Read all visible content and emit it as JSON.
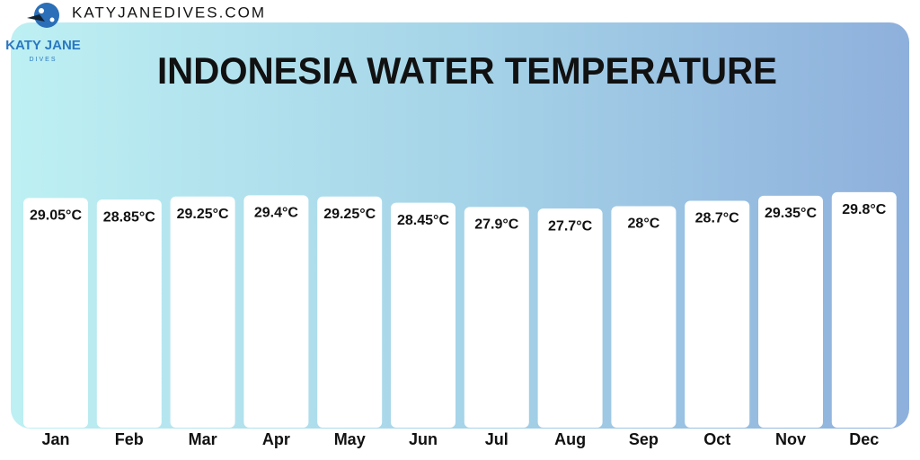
{
  "branding": {
    "site": "KATYJANEDIVES.COM",
    "logo": "KATY JANE",
    "logo_sub": "DIVES"
  },
  "chart_data": {
    "type": "bar",
    "title": "INDONESIA WATER TEMPERATURE",
    "categories": [
      "Jan",
      "Feb",
      "Mar",
      "Apr",
      "May",
      "Jun",
      "Jul",
      "Aug",
      "Sep",
      "Oct",
      "Nov",
      "Dec"
    ],
    "values": [
      29.05,
      28.85,
      29.25,
      29.4,
      29.25,
      28.45,
      27.9,
      27.7,
      28,
      28.7,
      29.35,
      29.8
    ],
    "value_labels": [
      "29.05°C",
      "28.85°C",
      "29.25°C",
      "29.4°C",
      "29.25°C",
      "28.45°C",
      "27.9°C",
      "27.7°C",
      "28°C",
      "28.7°C",
      "29.35°C",
      "29.8°C"
    ],
    "color": "#ffffff"
  }
}
